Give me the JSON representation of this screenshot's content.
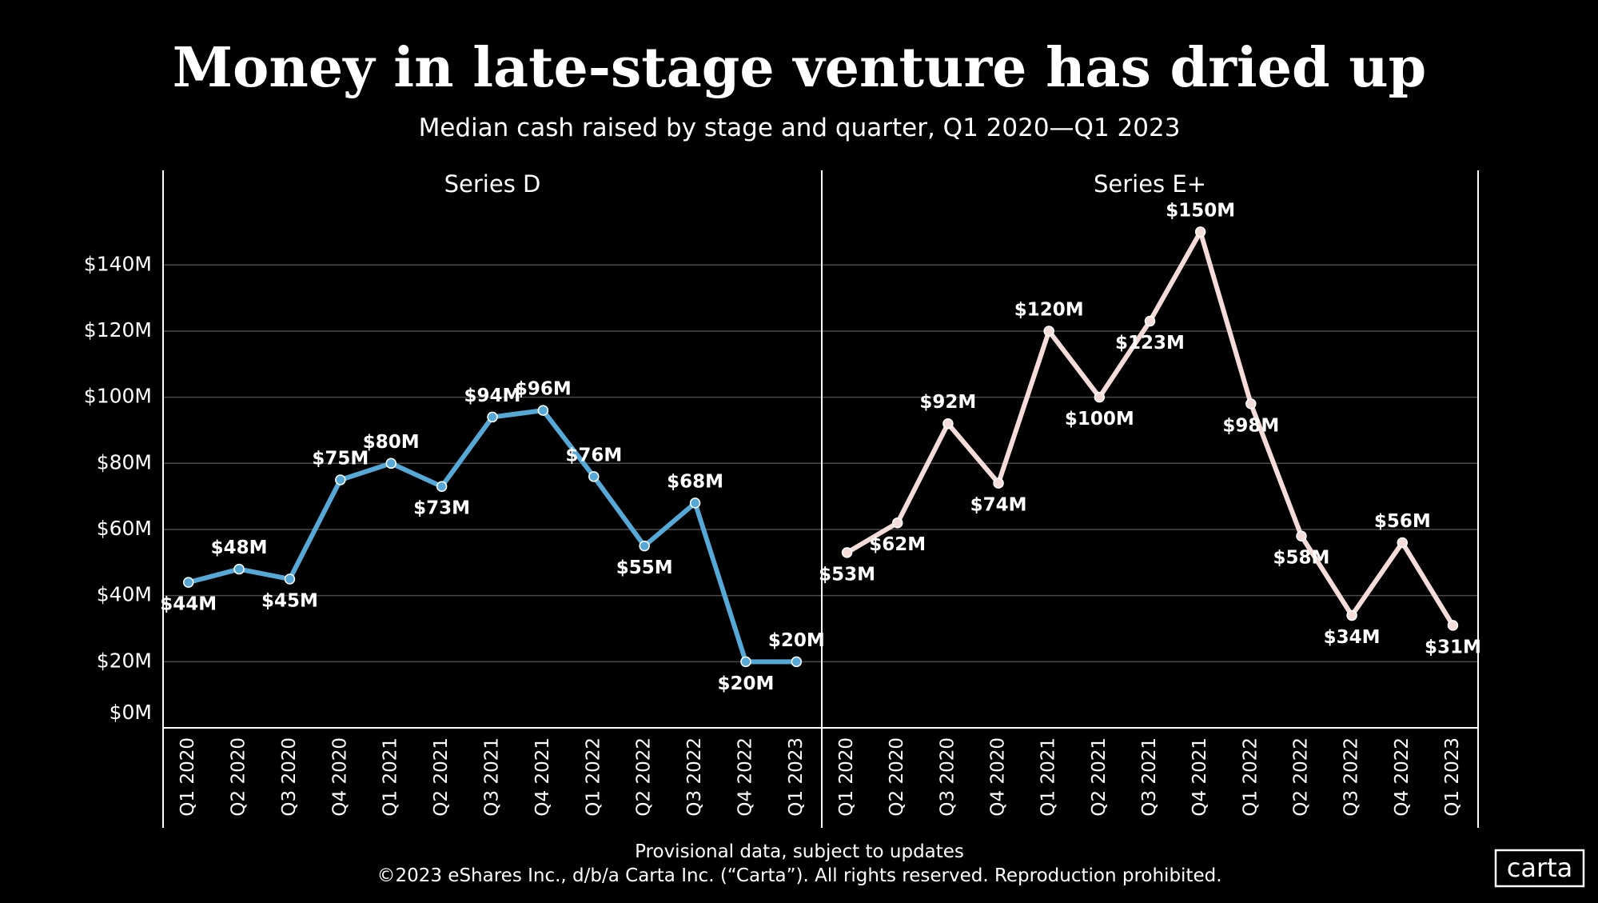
{
  "title": "Money in late-stage venture has dried up",
  "subtitle": "Median cash raised by stage and quarter, Q1 2020—Q1 2023",
  "footnote": "Provisional data, subject to updates",
  "copyright": "©2023 eShares Inc., d/b/a Carta Inc. (“Carta”). All rights reserved. Reproduction prohibited.",
  "logo": "carta",
  "chart_data": [
    {
      "type": "line",
      "title": "Series D",
      "color": "#56a9d6",
      "categories": [
        "Q1 2020",
        "Q2 2020",
        "Q3 2020",
        "Q4 2020",
        "Q1 2021",
        "Q2 2021",
        "Q3 2021",
        "Q4 2021",
        "Q1 2022",
        "Q2 2022",
        "Q3 2022",
        "Q4 2022",
        "Q1 2023"
      ],
      "values": [
        44,
        48,
        45,
        75,
        80,
        73,
        94,
        96,
        76,
        55,
        68,
        20,
        20
      ],
      "value_labels": [
        "$44M",
        "$48M",
        "$45M",
        "$75M",
        "$80M",
        "$73M",
        "$94M",
        "$96M",
        "$76M",
        "$55M",
        "$68M",
        "$20M",
        "$20M"
      ],
      "ylim": [
        0,
        157
      ],
      "yticks": [
        {
          "value": 0,
          "label": "$0M"
        },
        {
          "value": 20,
          "label": "$20M"
        },
        {
          "value": 40,
          "label": "$40M"
        },
        {
          "value": 60,
          "label": "$60M"
        },
        {
          "value": 80,
          "label": "$80M"
        },
        {
          "value": 100,
          "label": "$100M"
        },
        {
          "value": 120,
          "label": "$120M"
        },
        {
          "value": 140,
          "label": "$140M"
        }
      ],
      "grid": true
    },
    {
      "type": "line",
      "title": "Series E+",
      "color": "#f6dcd8",
      "categories": [
        "Q1 2020",
        "Q2 2020",
        "Q3 2020",
        "Q4 2020",
        "Q1 2021",
        "Q2 2021",
        "Q3 2021",
        "Q4 2021",
        "Q1 2022",
        "Q2 2022",
        "Q3 2022",
        "Q4 2022",
        "Q1 2023"
      ],
      "values": [
        53,
        62,
        92,
        74,
        120,
        100,
        123,
        150,
        98,
        58,
        34,
        56,
        31
      ],
      "value_labels": [
        "$53M",
        "$62M",
        "$92M",
        "$74M",
        "$120M",
        "$100M",
        "$123M",
        "$150M",
        "$98M",
        "$58M",
        "$34M",
        "$56M",
        "$31M"
      ],
      "ylim": [
        0,
        157
      ],
      "yticks": [
        0,
        20,
        40,
        60,
        80,
        100,
        120,
        140
      ],
      "grid": true
    }
  ]
}
